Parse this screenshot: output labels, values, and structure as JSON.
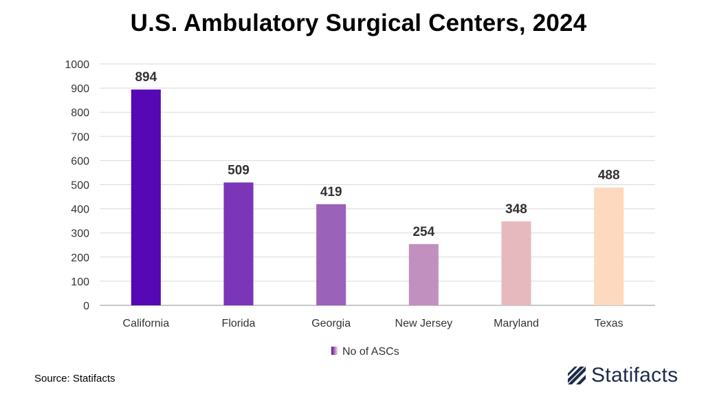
{
  "chart_data": {
    "type": "bar",
    "title": "U.S. Ambulatory Surgical Centers, 2024",
    "categories": [
      "California",
      "Florida",
      "Georgia",
      "New Jersey",
      "Maryland",
      "Texas"
    ],
    "series": [
      {
        "name": "No of ASCs",
        "values": [
          894,
          509,
          419,
          254,
          348,
          488
        ]
      }
    ],
    "bar_colors": [
      "#5508b4",
      "#7a35b8",
      "#9b62ba",
      "#c190be",
      "#e5b9be",
      "#fdd9bf"
    ],
    "ylim": [
      0,
      1000
    ],
    "yticks": [
      0,
      100,
      200,
      300,
      400,
      500,
      600,
      700,
      800,
      900,
      1000
    ],
    "grid": true,
    "legend_position": "bottom",
    "data_labels": true
  },
  "footer": {
    "source": "Source: Statifacts",
    "brand": "Statifacts"
  },
  "colors": {
    "grid": "#d9d9d9",
    "axis": "#a6a6a6",
    "brand": "#1e2a4a"
  }
}
